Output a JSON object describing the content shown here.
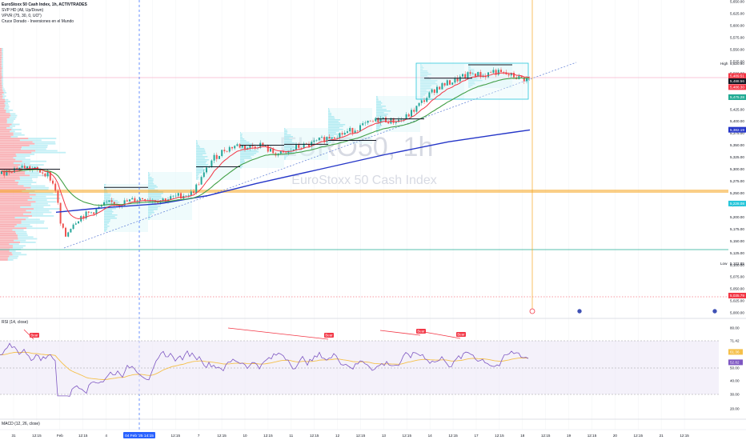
{
  "header": {
    "title": "EuroStoxx 50 Cash Index, 1h, ACTIVTRADES",
    "indicators": [
      "SVP HD (All, Up/Down)",
      "VPVR (75, 30, 0, UO\")",
      "Cruce Dorado - Inversiones en el Mundo"
    ]
  },
  "watermark": {
    "symbol": "EURO50, 1h",
    "name": "EuroStoxx 50 Cash Index"
  },
  "price_axis": {
    "ticks": [
      "5,650.00",
      "5,625.00",
      "5,600.00",
      "5,575.00",
      "5,550.00",
      "5,525.00",
      "5,500.00",
      "5,475.00",
      "5,450.00",
      "5,425.00",
      "5,400.00",
      "5,375.00",
      "5,350.00",
      "5,325.00",
      "5,300.00",
      "5,275.00",
      "5,250.00",
      "5,225.00",
      "5,200.00",
      "5,175.00",
      "5,150.00",
      "5,125.00",
      "5,100.00",
      "5,075.00",
      "5,050.00",
      "5,025.00",
      "5,000.00"
    ],
    "high_label": "High",
    "high_value": "5,520.90",
    "low_label": "Low",
    "low_value": "5,102.85",
    "tags": [
      {
        "value": "5,489.51",
        "color": "#f23645"
      },
      {
        "value": "5,488.56",
        "color": "#131722"
      },
      {
        "value": "5,486.30",
        "color": "#f23645"
      },
      {
        "value": "5,475.28",
        "color": "#22ab94"
      },
      {
        "value": "5,382.19",
        "color": "#2536c8"
      },
      {
        "value": "5,228.08",
        "color": "#26c6da"
      },
      {
        "value": "5,035.79",
        "color": "#f23645"
      }
    ]
  },
  "rsi": {
    "label": "RSI (14, close)",
    "ticks": [
      "80.00",
      "71.42",
      "60.00",
      "50.00",
      "40.00",
      "30.00",
      "20.00"
    ],
    "tags": [
      {
        "value": "61.36",
        "color": "#f5c04a"
      },
      {
        "value": "52.82",
        "color": "#7e57c2"
      }
    ],
    "bear_label": "Bear"
  },
  "macd": {
    "label": "MACD (12, 26, close)"
  },
  "time_axis": {
    "ticks": [
      "31",
      "12:15",
      "Feb",
      "12:15",
      "4",
      "12:15",
      "6",
      "12:15",
      "7",
      "12:15",
      "10",
      "12:15",
      "11",
      "12:15",
      "12",
      "12:15",
      "13",
      "12:15",
      "14",
      "12:15",
      "17",
      "12:15",
      "18",
      "12:15",
      "19",
      "12:15",
      "20",
      "12:15",
      "21",
      "12:15"
    ],
    "cursor_label": "04 Feb '25 14:15"
  },
  "colors": {
    "up": "#26a69a",
    "down": "#ef5350",
    "ema_fast": "#f23645",
    "ema_mid": "#43a047",
    "ema_slow": "#2536c8",
    "support": "#f5a623",
    "cursor": "#2962ff"
  }
}
